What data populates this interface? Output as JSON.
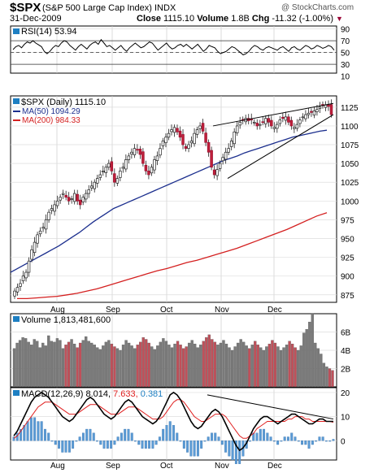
{
  "header": {
    "symbol": "$SPX",
    "name": "(S&P 500 Large Cap Index) INDX",
    "watermark": "@ StockCharts.com",
    "date": "31-Dec-2009",
    "close_label": "Close",
    "close_value": "1115.10",
    "volume_label": "Volume",
    "volume_value": "1.8B",
    "chg_label": "Chg",
    "chg_value": "-11.32 (-1.00%)",
    "chg_arrow": "▼",
    "down_color": "#990033"
  },
  "chart_data": [
    {
      "type": "line",
      "panel": "rsi",
      "legend": "RSI(14) 53.94",
      "ylim": [
        15,
        95
      ],
      "yticks": [
        10,
        30,
        50,
        70,
        90
      ],
      "reference_lines": [
        30,
        50,
        70
      ],
      "values": [
        55,
        60,
        62,
        58,
        64,
        68,
        66,
        70,
        66,
        63,
        60,
        52,
        48,
        52,
        58,
        62,
        60,
        66,
        70,
        68,
        62,
        58,
        54,
        60,
        64,
        60,
        56,
        62,
        66,
        68,
        64,
        72,
        66,
        60,
        62,
        58,
        54,
        58,
        62,
        56,
        52,
        58,
        62,
        66,
        62,
        58,
        60,
        64,
        68,
        66,
        60,
        54,
        58,
        62,
        66,
        60,
        56,
        58,
        62,
        64,
        60,
        64,
        60,
        56,
        60,
        64,
        58,
        52,
        56,
        62,
        60,
        58,
        52,
        48,
        50,
        52,
        56,
        60,
        58,
        54,
        50,
        46,
        48,
        52,
        58,
        62,
        60,
        56,
        54,
        58,
        60,
        58,
        56,
        54,
        58,
        60,
        56,
        52,
        58,
        60,
        56,
        54,
        58,
        62,
        60,
        56,
        58,
        62,
        60,
        57,
        59,
        62,
        60,
        54
      ]
    },
    {
      "type": "candlestick",
      "panel": "price",
      "legend": [
        "$SPX (Daily) 1115.10",
        "MA(50) 1094.29",
        "MA(200) 984.33"
      ],
      "ylim": [
        865,
        1140
      ],
      "yticks": [
        875,
        900,
        925,
        950,
        975,
        1000,
        1025,
        1050,
        1075,
        1100,
        1125
      ],
      "x_labels": [
        "Aug",
        "Sep",
        "Oct",
        "Nov",
        "Dec"
      ],
      "close": [
        880,
        885,
        890,
        900,
        905,
        920,
        935,
        945,
        955,
        960,
        965,
        975,
        985,
        990,
        995,
        1000,
        1005,
        1010,
        1005,
        1000,
        1003,
        1010,
        1000,
        995,
        1005,
        1010,
        1015,
        1020,
        1025,
        1030,
        1035,
        1040,
        1045,
        1050,
        1040,
        1025,
        1030,
        1040,
        1045,
        1055,
        1060,
        1065,
        1070,
        1068,
        1062,
        1050,
        1040,
        1035,
        1045,
        1055,
        1060,
        1070,
        1080,
        1085,
        1090,
        1095,
        1098,
        1092,
        1085,
        1075,
        1070,
        1075,
        1080,
        1090,
        1095,
        1100,
        1093,
        1078,
        1065,
        1045,
        1035,
        1042,
        1050,
        1058,
        1065,
        1070,
        1080,
        1092,
        1100,
        1105,
        1108,
        1110,
        1107,
        1108,
        1105,
        1100,
        1102,
        1105,
        1110,
        1105,
        1100,
        1098,
        1102,
        1108,
        1110,
        1112,
        1105,
        1100,
        1098,
        1102,
        1108,
        1112,
        1115,
        1117,
        1118,
        1120,
        1122,
        1125,
        1127,
        1128,
        1126,
        1115.1
      ],
      "ma50": [
        905,
        910,
        915,
        920,
        925,
        930,
        935,
        940,
        946,
        952,
        958,
        965,
        972,
        978,
        984,
        990,
        994,
        998,
        1002,
        1006,
        1010,
        1014,
        1018,
        1022,
        1026,
        1030,
        1034,
        1038,
        1042,
        1046,
        1050,
        1054,
        1057,
        1060,
        1064,
        1067,
        1070,
        1073,
        1076,
        1079,
        1082,
        1085,
        1087,
        1089,
        1091,
        1093,
        1094.29
      ],
      "ma200": [
        870,
        870,
        871,
        872,
        873,
        875,
        877,
        880,
        883,
        887,
        891,
        895,
        899,
        903,
        907,
        910,
        914,
        918,
        921,
        925,
        929,
        933,
        937,
        942,
        947,
        952,
        957,
        962,
        968,
        974,
        980,
        984.33
      ],
      "trendlines": [
        {
          "name": "upper",
          "from": [
            1060,
            1100
          ],
          "to": [
            1135,
            1130
          ]
        },
        {
          "name": "lower",
          "from": [
            1040,
            1030
          ],
          "to": [
            1115,
            1115
          ]
        }
      ]
    },
    {
      "type": "bar",
      "panel": "volume",
      "legend": "Volume 1,813,481,600",
      "yticks": [
        "2B",
        "4B",
        "6B"
      ],
      "ylim": [
        0,
        8
      ],
      "values": [
        4.2,
        4.8,
        5.1,
        5.4,
        5.3,
        4.9,
        4.6,
        5.2,
        5.0,
        4.3,
        4.8,
        4.5,
        5.6,
        5.0,
        4.9,
        5.3,
        5.1,
        4.2,
        4.6,
        4.9,
        5.2,
        4.7,
        4.3,
        4.8,
        5.1,
        5.5,
        5.0,
        4.8,
        4.6,
        4.3,
        4.1,
        4.5,
        4.9,
        5.1,
        4.7,
        4.4,
        4.2,
        4.0,
        4.6,
        5.1,
        4.8,
        4.5,
        4.2,
        4.6,
        4.9,
        5.4,
        5.2,
        4.8,
        4.4,
        4.1,
        4.5,
        4.9,
        5.3,
        5.0,
        4.6,
        4.3,
        4.7,
        5.0,
        4.6,
        4.2,
        4.4,
        4.8,
        5.1,
        4.7,
        4.3,
        4.6,
        5.0,
        5.4,
        5.7,
        5.2,
        4.9,
        4.6,
        4.8,
        5.1,
        4.7,
        4.3,
        4.0,
        4.4,
        4.8,
        5.2,
        4.9,
        4.5,
        4.2,
        4.6,
        5.0,
        4.6,
        4.3,
        4.0,
        4.4,
        4.7,
        5.1,
        4.8,
        4.4,
        4.0,
        4.3,
        4.6,
        5.0,
        4.7,
        4.3,
        4.0,
        4.5,
        5.9,
        6.3,
        7.1,
        8.0,
        4.8,
        4.2,
        3.6,
        2.6,
        2.2,
        2.0,
        1.8
      ]
    },
    {
      "type": "line",
      "panel": "macd",
      "legend": {
        "label": "MACD(12,26,9)",
        "macd": "8.014",
        "signal": "7.633",
        "hist": "0.381"
      },
      "ylim": [
        -8,
        22
      ],
      "yticks": [
        0,
        10,
        20
      ],
      "macd": [
        2,
        4,
        7,
        10,
        13,
        16,
        18,
        19,
        20,
        19,
        18,
        16,
        14,
        12,
        10,
        9,
        8,
        9,
        11,
        13,
        15,
        17,
        18,
        17,
        15,
        13,
        11,
        10,
        9,
        10,
        12,
        14,
        16,
        17,
        16,
        14,
        12,
        10,
        9,
        8,
        7,
        8,
        10,
        13,
        16,
        19,
        20,
        19,
        17,
        14,
        11,
        8,
        6,
        5,
        6,
        8,
        10,
        12,
        13,
        12,
        10,
        7,
        4,
        1,
        -2,
        -4,
        -3,
        -1,
        2,
        5,
        7,
        9,
        10,
        10,
        9,
        8,
        7,
        8,
        9,
        10,
        11,
        11,
        10,
        9,
        8,
        7,
        7,
        8,
        9,
        9,
        8,
        8,
        8.014
      ],
      "signal": [
        1,
        2,
        4,
        6,
        8,
        10,
        12,
        14,
        15,
        16,
        16,
        16,
        15,
        14,
        13,
        12,
        11,
        11,
        11,
        12,
        13,
        14,
        15,
        15,
        15,
        14,
        13,
        12,
        11,
        11,
        11,
        12,
        13,
        14,
        14,
        14,
        13,
        12,
        11,
        10,
        9,
        9,
        9,
        10,
        12,
        14,
        16,
        17,
        17,
        16,
        14,
        12,
        10,
        9,
        8,
        8,
        9,
        10,
        11,
        11,
        11,
        10,
        8,
        6,
        4,
        2,
        1,
        1,
        2,
        3,
        5,
        6,
        7,
        8,
        8,
        8,
        8,
        8,
        8,
        9,
        9,
        10,
        10,
        10,
        9,
        9,
        8,
        8,
        8,
        8,
        8,
        8,
        7.633
      ]
    }
  ]
}
